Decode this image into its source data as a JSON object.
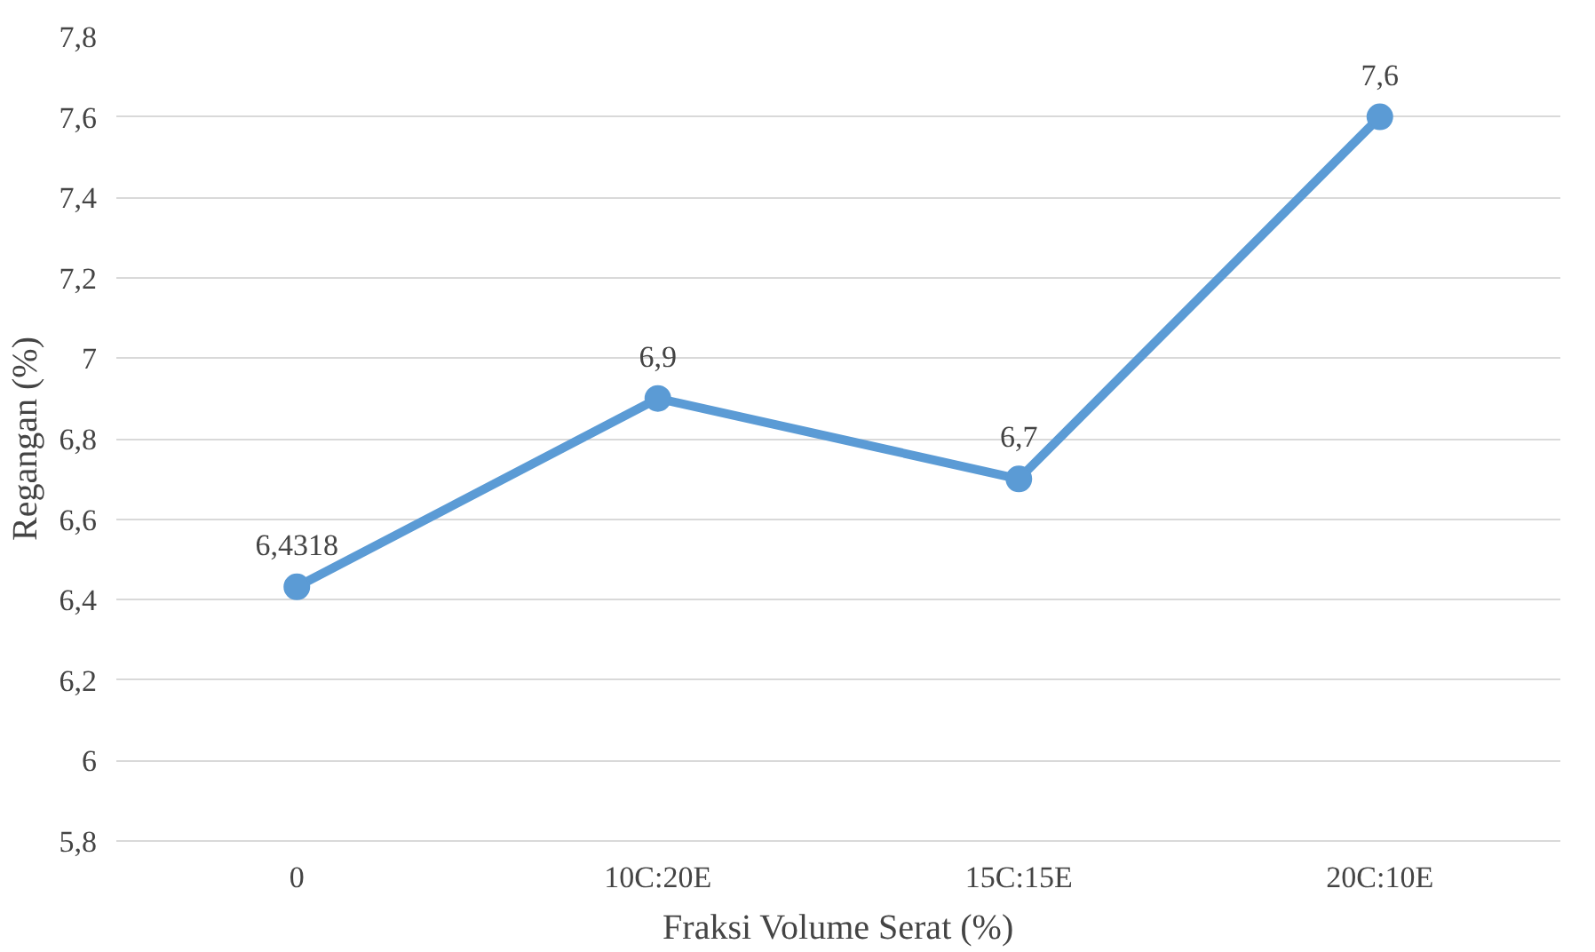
{
  "chart_data": {
    "type": "line",
    "xlabel": "Fraksi Volume Serat (%)",
    "ylabel": "Regangan (%)",
    "categories": [
      "0",
      "10C:20E",
      "15C:15E",
      "20C:10E"
    ],
    "series": [
      {
        "color": "#5b9bd5",
        "values": [
          6.4318,
          6.9,
          6.7,
          7.6
        ],
        "value_labels": [
          "6,4318",
          "6,9",
          "6,7",
          "7,6"
        ]
      }
    ],
    "ylim": [
      5.8,
      7.8
    ],
    "yticks": [
      {
        "value": 5.8,
        "label": "5,8"
      },
      {
        "value": 6,
        "label": "6"
      },
      {
        "value": 6.2,
        "label": "6,2"
      },
      {
        "value": 6.4,
        "label": "6,4"
      },
      {
        "value": 6.6,
        "label": "6,6"
      },
      {
        "value": 6.8,
        "label": "6,8"
      },
      {
        "value": 7,
        "label": "7"
      },
      {
        "value": 7.2,
        "label": "7,2"
      },
      {
        "value": 7.4,
        "label": "7,4"
      },
      {
        "value": 7.6,
        "label": "7,6"
      },
      {
        "value": 7.8,
        "label": "7,8"
      }
    ],
    "grid": "y",
    "marker": "circle",
    "line_style": "solid"
  }
}
